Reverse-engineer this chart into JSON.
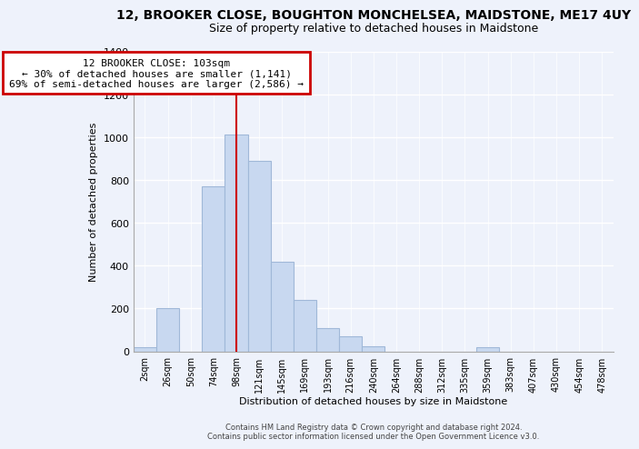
{
  "title_line1": "12, BROOKER CLOSE, BOUGHTON MONCHELSEA, MAIDSTONE, ME17 4UY",
  "title_line2": "Size of property relative to detached houses in Maidstone",
  "xlabel": "Distribution of detached houses by size in Maidstone",
  "ylabel": "Number of detached properties",
  "bar_labels": [
    "2sqm",
    "26sqm",
    "50sqm",
    "74sqm",
    "98sqm",
    "121sqm",
    "145sqm",
    "169sqm",
    "193sqm",
    "216sqm",
    "240sqm",
    "264sqm",
    "288sqm",
    "312sqm",
    "335sqm",
    "359sqm",
    "383sqm",
    "407sqm",
    "430sqm",
    "454sqm",
    "478sqm"
  ],
  "bar_values": [
    20,
    200,
    0,
    770,
    1010,
    890,
    420,
    240,
    110,
    70,
    25,
    0,
    0,
    0,
    0,
    20,
    0,
    0,
    0,
    0,
    0
  ],
  "bar_color": "#c8d8f0",
  "bar_edge_color": "#a0b8d8",
  "vline_x_index": 4,
  "vline_color": "#cc0000",
  "ylim": [
    0,
    1400
  ],
  "yticks": [
    0,
    200,
    400,
    600,
    800,
    1000,
    1200,
    1400
  ],
  "annotation_title": "12 BROOKER CLOSE: 103sqm",
  "annotation_line1": "← 30% of detached houses are smaller (1,141)",
  "annotation_line2": "69% of semi-detached houses are larger (2,586) →",
  "annotation_box_color": "#ffffff",
  "annotation_box_edge": "#cc0000",
  "footer_line1": "Contains HM Land Registry data © Crown copyright and database right 2024.",
  "footer_line2": "Contains public sector information licensed under the Open Government Licence v3.0.",
  "background_color": "#eef2fb",
  "grid_color": "#ffffff",
  "title1_fontsize": 10,
  "title2_fontsize": 9,
  "tick_fontsize": 7,
  "axis_label_fontsize": 8,
  "annotation_fontsize": 8
}
